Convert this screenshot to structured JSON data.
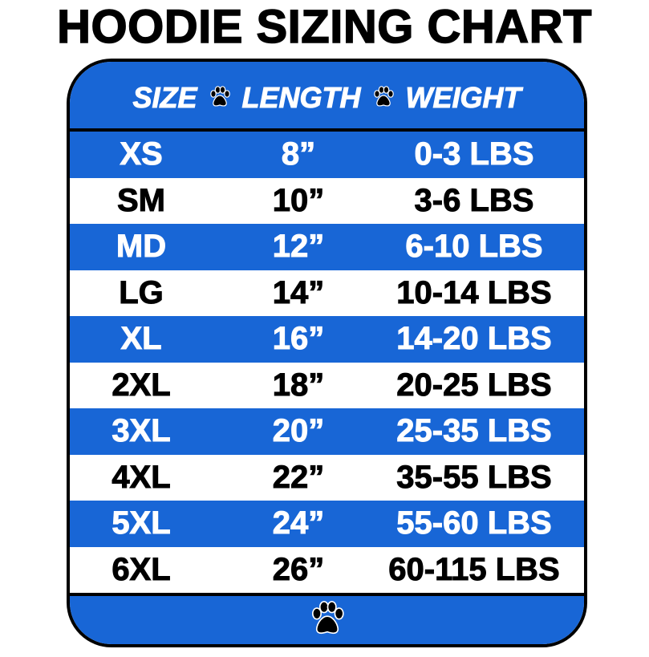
{
  "title": "HOODIE SIZING CHART",
  "colors": {
    "blue": "#1866d6",
    "white": "#ffffff",
    "border": "#000000"
  },
  "header": {
    "col1": "SIZE",
    "col2": "LENGTH",
    "col3": "WEIGHT",
    "separator_icon": "paw-icon"
  },
  "rows": [
    {
      "size": "XS",
      "length": "8”",
      "weight": "0-3 LBS"
    },
    {
      "size": "SM",
      "length": "10”",
      "weight": "3-6 LBS"
    },
    {
      "size": "MD",
      "length": "12”",
      "weight": "6-10 LBS"
    },
    {
      "size": "LG",
      "length": "14”",
      "weight": "10-14 LBS"
    },
    {
      "size": "XL",
      "length": "16”",
      "weight": "14-20 LBS"
    },
    {
      "size": "2XL",
      "length": "18”",
      "weight": "20-25 LBS"
    },
    {
      "size": "3XL",
      "length": "20”",
      "weight": "25-35 LBS"
    },
    {
      "size": "4XL",
      "length": "22”",
      "weight": "35-55 LBS"
    },
    {
      "size": "5XL",
      "length": "24”",
      "weight": "55-60 LBS"
    },
    {
      "size": "6XL",
      "length": "26”",
      "weight": "60-115 LBS"
    }
  ],
  "footer": {
    "icon": "paw-icon"
  }
}
